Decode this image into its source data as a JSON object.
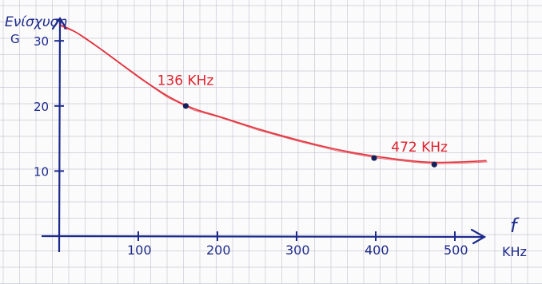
{
  "chart_data": {
    "type": "line",
    "title": "",
    "ylabel": "G",
    "ylabel_note": "Ενίσχυση",
    "xlabel": "f",
    "xunit": "KHz",
    "xlim": [
      0,
      540
    ],
    "ylim": [
      0,
      34
    ],
    "x_ticks": [
      "100",
      "200",
      "300",
      "400",
      "500"
    ],
    "x_tick_values": [
      100,
      200,
      300,
      400,
      500
    ],
    "y_ticks": [
      "10",
      "20",
      "30"
    ],
    "y_tick_values": [
      10,
      20,
      30
    ],
    "series": [
      {
        "color": "#e0202c",
        "x": [
          0,
          20,
          50,
          100,
          136,
          170,
          200,
          250,
          300,
          350,
          400,
          450,
          472,
          510,
          540
        ],
        "y": [
          32.5,
          31.5,
          29,
          24.5,
          21.5,
          19.5,
          18.5,
          16.5,
          14.8,
          13.3,
          12.2,
          11.5,
          11.3,
          11.4,
          11.6
        ]
      }
    ],
    "points": [
      {
        "x": 160,
        "y": 20
      },
      {
        "x": 398,
        "y": 12
      },
      {
        "x": 474,
        "y": 11
      }
    ],
    "annotations": [
      {
        "text": "136 KHz",
        "x": 136,
        "y": 21.5
      },
      {
        "text": "472 KHz",
        "x": 472,
        "y": 11.3
      }
    ],
    "grid": true,
    "colors": {
      "ink": "#1c2a8c",
      "curve": "#e0202c",
      "grid": "#c9c9d6"
    }
  }
}
